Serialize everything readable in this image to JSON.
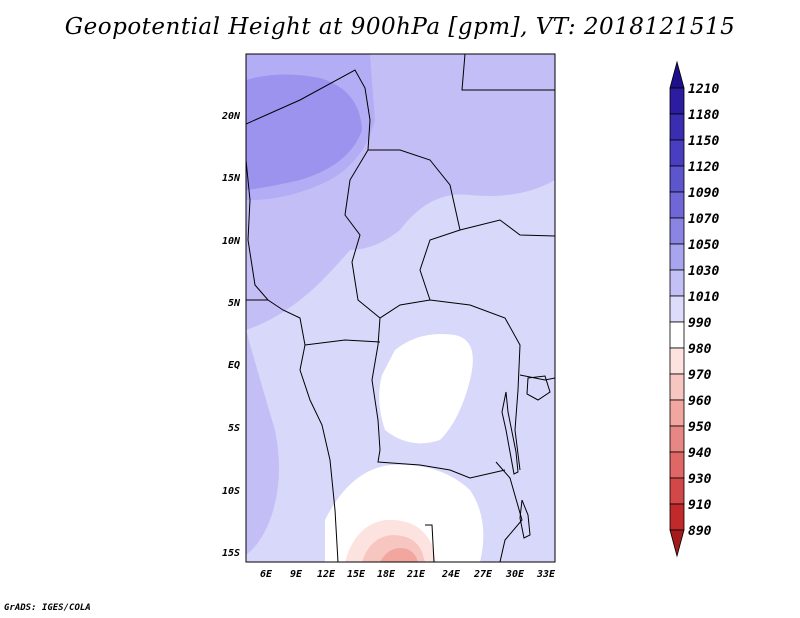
{
  "title": "Geopotential Height at 900hPa [gpm], VT: 2018121515",
  "credit": "GrADS: IGES/COLA",
  "map": {
    "lon_ticks": [
      "6E",
      "9E",
      "12E",
      "15E",
      "18E",
      "21E",
      "24E",
      "27E",
      "30E",
      "33E"
    ],
    "lat_ticks": [
      "20N",
      "15N",
      "10N",
      "5N",
      "EQ",
      "5S",
      "10S",
      "15S"
    ],
    "lon_range_deg": [
      3,
      34
    ],
    "lat_range_deg": [
      -16,
      24.5
    ]
  },
  "colorbar": {
    "levels": [
      "1210",
      "1180",
      "1150",
      "1120",
      "1090",
      "1070",
      "1050",
      "1030",
      "1010",
      "990",
      "980",
      "970",
      "960",
      "950",
      "940",
      "930",
      "910",
      "890"
    ],
    "colors_top_to_bottom": [
      "#1e0f8c",
      "#2b1ca0",
      "#3a2db0",
      "#4a3ec0",
      "#5d55cc",
      "#7066d6",
      "#8b84e2",
      "#a9a4ee",
      "#c3c0f5",
      "#dedcfb",
      "#ffffff",
      "#fde3df",
      "#f8c6c0",
      "#f2a6a0",
      "#e68783",
      "#df6765",
      "#d24848",
      "#c02a2a",
      "#a41b1b"
    ]
  },
  "field_colors": {
    "band_1090": "#9c93ef",
    "band_1070": "#b3adf5",
    "band_1050": "#c3bff6",
    "band_1030": "#d8d8fa",
    "band_1010": "#ffffff",
    "band_990": "#fde3df",
    "band_980": "#f8c6c0",
    "band_970": "#f2a6a0"
  }
}
